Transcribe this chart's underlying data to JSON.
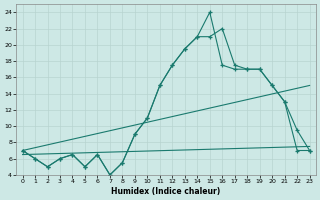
{
  "xlabel": "Humidex (Indice chaleur)",
  "bg_color": "#cde8e5",
  "line_color": "#1a7a6e",
  "grid_color": "#b8d4d0",
  "xlim": [
    -0.5,
    23.5
  ],
  "ylim": [
    4,
    25
  ],
  "xticks": [
    0,
    1,
    2,
    3,
    4,
    5,
    6,
    7,
    8,
    9,
    10,
    11,
    12,
    13,
    14,
    15,
    16,
    17,
    18,
    19,
    20,
    21,
    22,
    23
  ],
  "yticks": [
    4,
    6,
    8,
    10,
    12,
    14,
    16,
    18,
    20,
    22,
    24
  ],
  "line1_x": [
    0,
    1,
    2,
    3,
    4,
    5,
    6,
    7,
    8,
    9,
    10,
    11,
    12,
    13,
    14,
    15,
    16,
    17,
    18,
    19,
    20,
    21,
    22,
    23
  ],
  "line1_y": [
    7,
    6,
    5,
    6,
    6.5,
    5,
    6.5,
    4,
    5.5,
    9,
    11,
    15,
    17.5,
    19.5,
    21,
    21,
    22,
    17.5,
    17,
    17,
    15,
    13,
    9.5,
    7
  ],
  "line2_x": [
    0,
    1,
    2,
    3,
    4,
    5,
    6,
    7,
    8,
    9,
    10,
    11,
    12,
    13,
    14,
    15,
    16,
    17,
    18,
    19,
    20,
    21,
    22,
    23
  ],
  "line2_y": [
    7,
    6,
    5,
    6,
    6.5,
    5,
    6.5,
    4,
    5.5,
    9,
    11,
    15,
    17.5,
    19.5,
    21,
    24,
    17.5,
    17,
    17,
    17,
    15,
    13,
    7,
    7
  ],
  "line3_x": [
    0,
    23
  ],
  "line3_y": [
    7,
    15
  ],
  "line4_x": [
    0,
    23
  ],
  "line4_y": [
    6.5,
    7.5
  ]
}
